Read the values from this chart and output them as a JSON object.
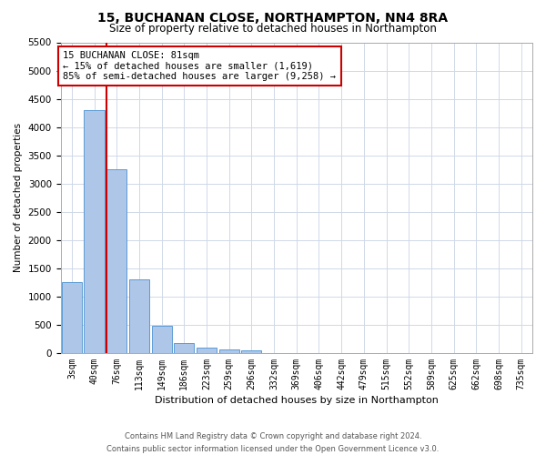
{
  "title": "15, BUCHANAN CLOSE, NORTHAMPTON, NN4 8RA",
  "subtitle": "Size of property relative to detached houses in Northampton",
  "xlabel": "Distribution of detached houses by size in Northampton",
  "ylabel": "Number of detached properties",
  "annotation_title": "15 BUCHANAN CLOSE: 81sqm",
  "annotation_line1": "← 15% of detached houses are smaller (1,619)",
  "annotation_line2": "85% of semi-detached houses are larger (9,258) →",
  "footer_line1": "Contains HM Land Registry data © Crown copyright and database right 2024.",
  "footer_line2": "Contains public sector information licensed under the Open Government Licence v3.0.",
  "bin_labels": [
    "3sqm",
    "40sqm",
    "76sqm",
    "113sqm",
    "149sqm",
    "186sqm",
    "223sqm",
    "259sqm",
    "296sqm",
    "332sqm",
    "369sqm",
    "406sqm",
    "442sqm",
    "479sqm",
    "515sqm",
    "552sqm",
    "589sqm",
    "625sqm",
    "662sqm",
    "698sqm",
    "735sqm"
  ],
  "bin_values": [
    1250,
    4300,
    3250,
    1300,
    480,
    180,
    90,
    70,
    55,
    0,
    0,
    0,
    0,
    0,
    0,
    0,
    0,
    0,
    0,
    0,
    0
  ],
  "bar_color": "#aec6e8",
  "bar_edge_color": "#5b9bd5",
  "grid_color": "#d0d8e8",
  "vline_color": "#cc0000",
  "vline_x_index": 2,
  "annotation_box_color": "#cc0000",
  "ylim": [
    0,
    5500
  ],
  "yticks": [
    0,
    500,
    1000,
    1500,
    2000,
    2500,
    3000,
    3500,
    4000,
    4500,
    5000,
    5500
  ],
  "background_color": "#ffffff"
}
